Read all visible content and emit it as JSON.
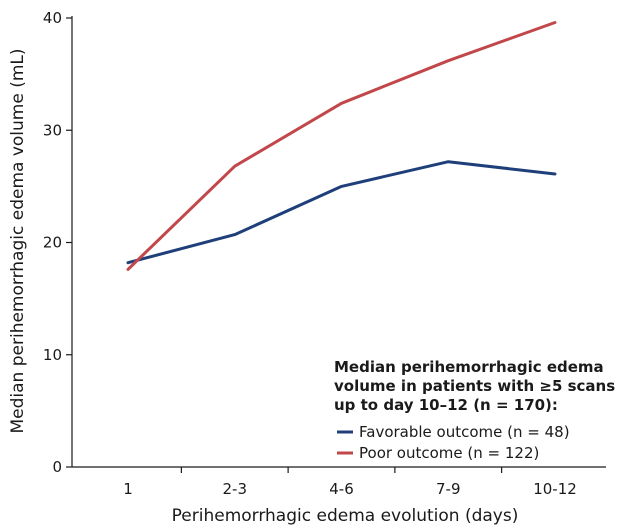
{
  "chart_data": {
    "type": "line",
    "categories": [
      "1",
      "2-3",
      "4-6",
      "7-9",
      "10-12"
    ],
    "series": [
      {
        "name": "Favorable outcome (n = 48)",
        "values": [
          18.2,
          20.7,
          25.0,
          27.2,
          26.1
        ],
        "color": "#1f3f7a"
      },
      {
        "name": "Poor outcome (n = 122)",
        "values": [
          17.6,
          26.8,
          32.4,
          36.2,
          39.6
        ],
        "color": "#c2474b"
      }
    ],
    "xlabel": "Perihemorrhagic edema evolution (days)",
    "ylabel": "Median perihemorrhagic edema volume (mL)",
    "ylim": [
      0,
      40
    ],
    "yticks": [
      0,
      10,
      20,
      30,
      40
    ],
    "grid": false,
    "legend": {
      "position": "bottom-right",
      "title_lines": [
        "Median perihemorrhagic edema",
        "volume in patients with ≥5 scans",
        "up to day 10–12 (n = 170):"
      ]
    }
  }
}
